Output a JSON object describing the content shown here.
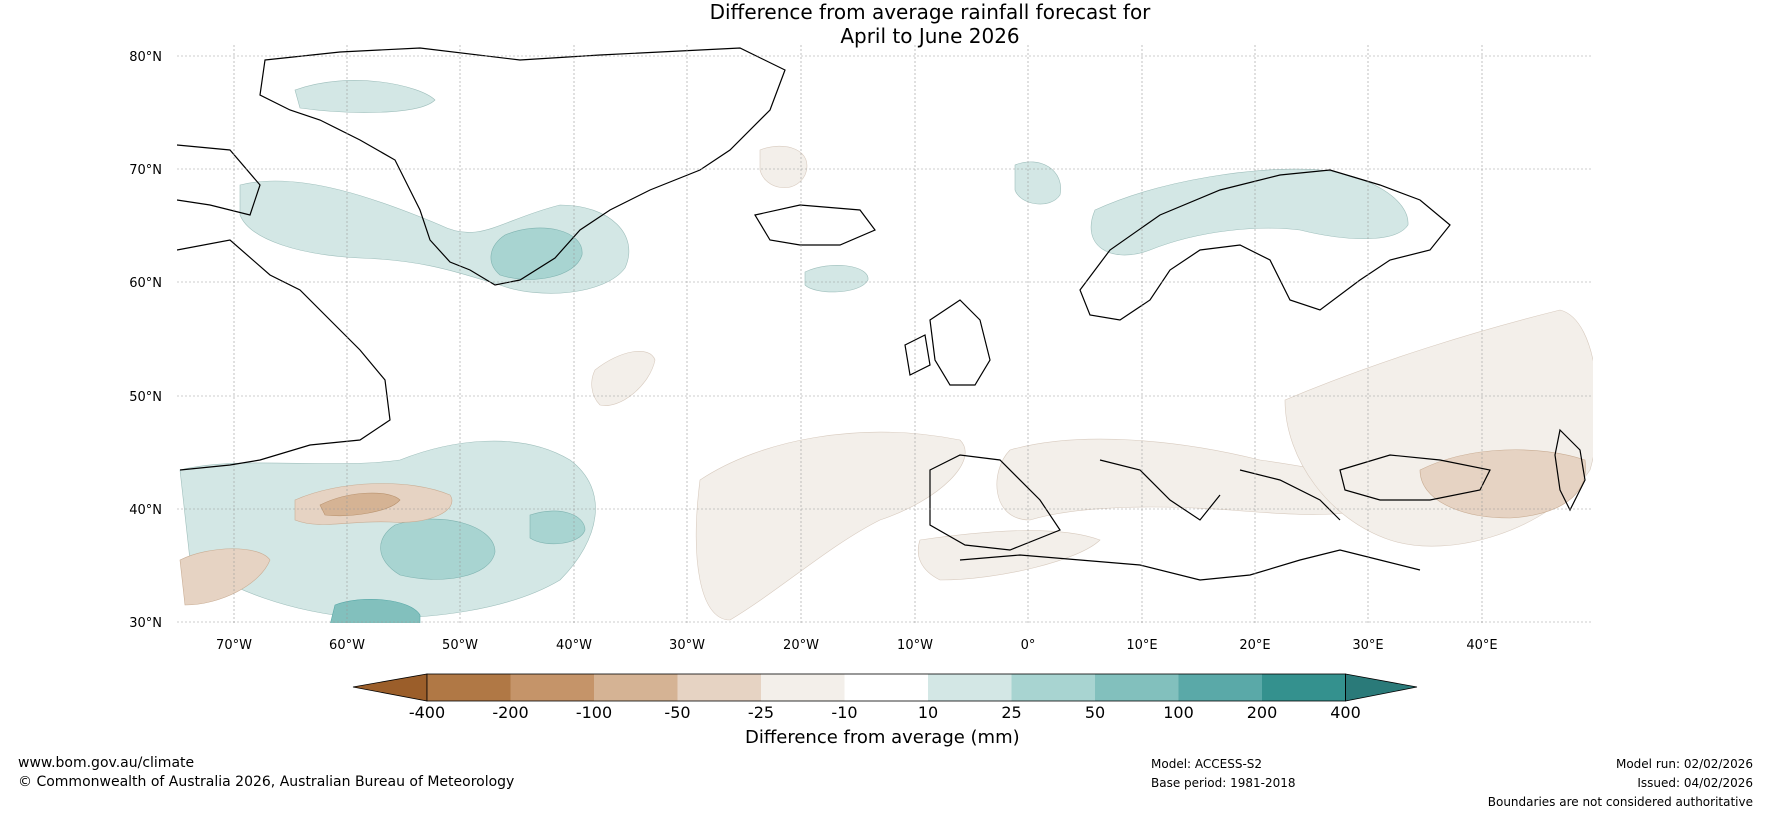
{
  "title": {
    "line1": "Difference from average rainfall forecast for",
    "line2": "April to June 2026"
  },
  "axes": {
    "lat_labels": [
      "80°N",
      "70°N",
      "60°N",
      "50°N",
      "40°N",
      "30°N"
    ],
    "lon_labels": [
      "70°W",
      "60°W",
      "50°W",
      "40°W",
      "30°W",
      "20°W",
      "10°W",
      "0°",
      "10°E",
      "20°E",
      "30°E",
      "40°E"
    ]
  },
  "colorbar": {
    "title": "Difference from average (mm)",
    "tick_labels": [
      "-400",
      "-200",
      "-100",
      "-50",
      "-25",
      "-10",
      "10",
      "25",
      "50",
      "100",
      "200",
      "400"
    ],
    "colors": [
      "#9b5e2a",
      "#b07845",
      "#c59469",
      "#d5b394",
      "#e6d3c3",
      "#f3efea",
      "#ffffff",
      "#d3e7e5",
      "#a8d4d1",
      "#82c0bd",
      "#5aa9a8",
      "#34918e",
      "#2a7a79"
    ]
  },
  "footer": {
    "website": "www.bom.gov.au/climate",
    "copyright": "© Commonwealth of Australia 2026, Australian Bureau of Meteorology",
    "model": "Model: ACCESS-S2",
    "base_period": "Base period: 1981-2018",
    "model_run": "Model run: 02/02/2026",
    "issued": "Issued: 04/02/2026",
    "boundaries_note": "Boundaries are not considered authoritative"
  }
}
